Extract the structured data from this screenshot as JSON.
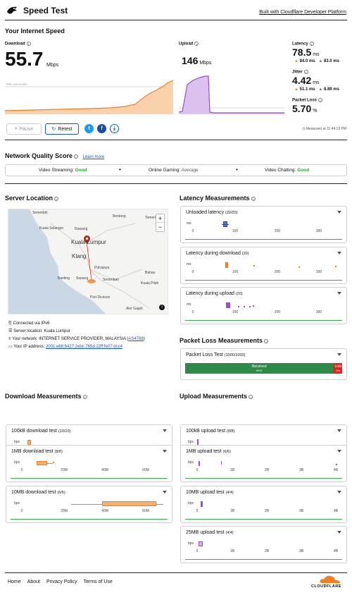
{
  "header": {
    "title": "Speed Test",
    "built_with": "Built with Cloudflare Developer Platform"
  },
  "summary": {
    "heading": "Your Internet Speed",
    "download_label": "Download",
    "download_value": "55.7",
    "download_unit": "Mbps",
    "percentile_label": "90th percentile",
    "upload_label": "Upload",
    "upload_value": "146",
    "upload_unit": "Mbps",
    "latency_label": "Latency",
    "latency_value": "78.5",
    "latency_unit": "ms",
    "latency_down": "84.0 ms",
    "latency_up": "83.0 ms",
    "jitter_label": "Jitter",
    "jitter_value": "4.42",
    "jitter_unit": "ms",
    "jitter_down": "51.1 ms",
    "jitter_up": "8.89 ms",
    "loss_label": "Packet Loss",
    "loss_value": "5.70",
    "loss_unit": "%",
    "pause_label": "Pause",
    "retest_label": "Retest",
    "measured_at": "Measured at 11:44:13 PM"
  },
  "quality": {
    "heading": "Network Quality Score",
    "learn_more": "Learn more",
    "items": [
      {
        "label": "Video Streaming:",
        "value": "Good",
        "color": "#2e9e3e"
      },
      {
        "label": "Online Gaming:",
        "value": "Average",
        "color": "#555555"
      },
      {
        "label": "Video Chatting:",
        "value": "Good",
        "color": "#2e9e3e"
      }
    ]
  },
  "server": {
    "heading": "Server Location",
    "map_labels": [
      "Serendah",
      "Bentong",
      "Temerloh",
      "Kuala Selangor",
      "Rawang",
      "Kuala Lumpur",
      "Klang",
      "Putrajaya",
      "Banting",
      "Sepang",
      "Seremban",
      "Bahau",
      "Kuala Pilah",
      "Port Dickson",
      "Alor Gajah"
    ],
    "zoom_in": "+",
    "zoom_out": "−",
    "connected": "Connected via IPv6",
    "location": "Server location: Kuala Lumpur",
    "network_prefix": "Your network: INTERNET SERVICE PROVIDER, MALAYSIA (",
    "network_as": "AS4788",
    "network_suffix": ")",
    "ip_prefix": "Your IP address: ",
    "ip": "2001:e68:5427:2ebc:765d:22ff:fe07:dcc4"
  },
  "latency": {
    "heading": "Latency Measurements",
    "unit": "ms",
    "ticks": [
      "0",
      "100",
      "200",
      "300"
    ],
    "tests": [
      {
        "title": "Unloaded latency",
        "count": "(20/20)"
      },
      {
        "title": "Latency during download",
        "count": "(20)"
      },
      {
        "title": "Latency during upload",
        "count": "(20)"
      }
    ]
  },
  "packet_loss": {
    "heading": "Packet Loss Measurements",
    "test_title": "Packet Loss Test",
    "count": "(1000/1000)",
    "received_label": "Received",
    "received_pct": "94%",
    "received_fraction": 0.943,
    "lost_label": "Lost",
    "lost_pct": "6%"
  },
  "download": {
    "heading": "Download Measurements",
    "unit": "bps",
    "ticks": [
      "0",
      "20M",
      "40M",
      "60M"
    ],
    "tests": [
      {
        "title": "100kB download test",
        "count": "(10/10)"
      },
      {
        "title": "1MB download test",
        "count": "(8/8)"
      },
      {
        "title": "10MB download test",
        "count": "(6/6)"
      }
    ]
  },
  "upload": {
    "heading": "Upload Measurements",
    "unit": "bps",
    "ticks": [
      "0",
      "1B",
      "2B",
      "3B",
      "4B"
    ],
    "tests": [
      {
        "title": "100kB upload test",
        "count": "(8/8)"
      },
      {
        "title": "1MB upload test",
        "count": "(6/6)"
      },
      {
        "title": "10MB upload test",
        "count": "(4/4)"
      },
      {
        "title": "25MB upload test",
        "count": "(4/4)"
      }
    ]
  },
  "footer": {
    "links": [
      "Home",
      "About",
      "Privacy Policy",
      "Terms of Use"
    ],
    "brand": "CLOUDFLARE"
  },
  "colors": {
    "download": "#f38020",
    "upload": "#9b4dca",
    "good": "#2e9e3e",
    "lost": "#e8231a",
    "received": "#2e8b47"
  }
}
